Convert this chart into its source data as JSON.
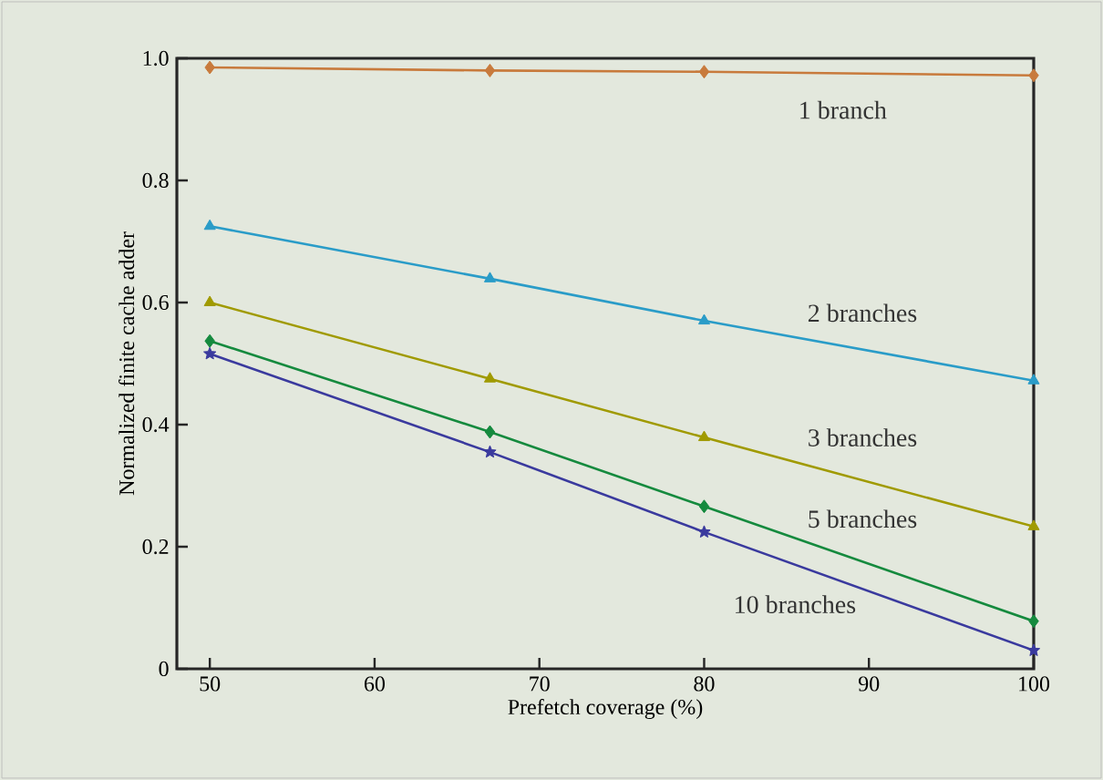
{
  "chart_data": {
    "type": "line",
    "xlabel": "Prefetch coverage  (%)",
    "ylabel": "Normalized finite cache adder",
    "x": [
      50,
      67,
      80,
      100
    ],
    "series": [
      {
        "name": "1 branch",
        "color": "#c87a3c",
        "marker": "diamond",
        "values": [
          0.985,
          0.98,
          0.978,
          0.972
        ]
      },
      {
        "name": "2 branches",
        "color": "#2a9cc8",
        "marker": "triangle",
        "values": [
          0.725,
          0.639,
          0.57,
          0.472
        ]
      },
      {
        "name": "3 branches",
        "color": "#a09a00",
        "marker": "triangle",
        "values": [
          0.6,
          0.475,
          0.379,
          0.233
        ]
      },
      {
        "name": "5 branches",
        "color": "#158a3e",
        "marker": "diamond",
        "values": [
          0.537,
          0.388,
          0.266,
          0.078
        ]
      },
      {
        "name": "10 branches",
        "color": "#3a3a9e",
        "marker": "star",
        "values": [
          0.516,
          0.355,
          0.224,
          0.03
        ]
      }
    ],
    "xlim": [
      48,
      100
    ],
    "xticks": [
      50,
      60,
      70,
      80,
      90,
      100
    ],
    "ylim": [
      0,
      1
    ],
    "yticks": [
      0,
      0.2,
      0.4,
      0.6,
      0.8,
      {
        "value": 1,
        "label": "1.0"
      }
    ],
    "grid": false,
    "legend": false,
    "line_style": "solid"
  }
}
